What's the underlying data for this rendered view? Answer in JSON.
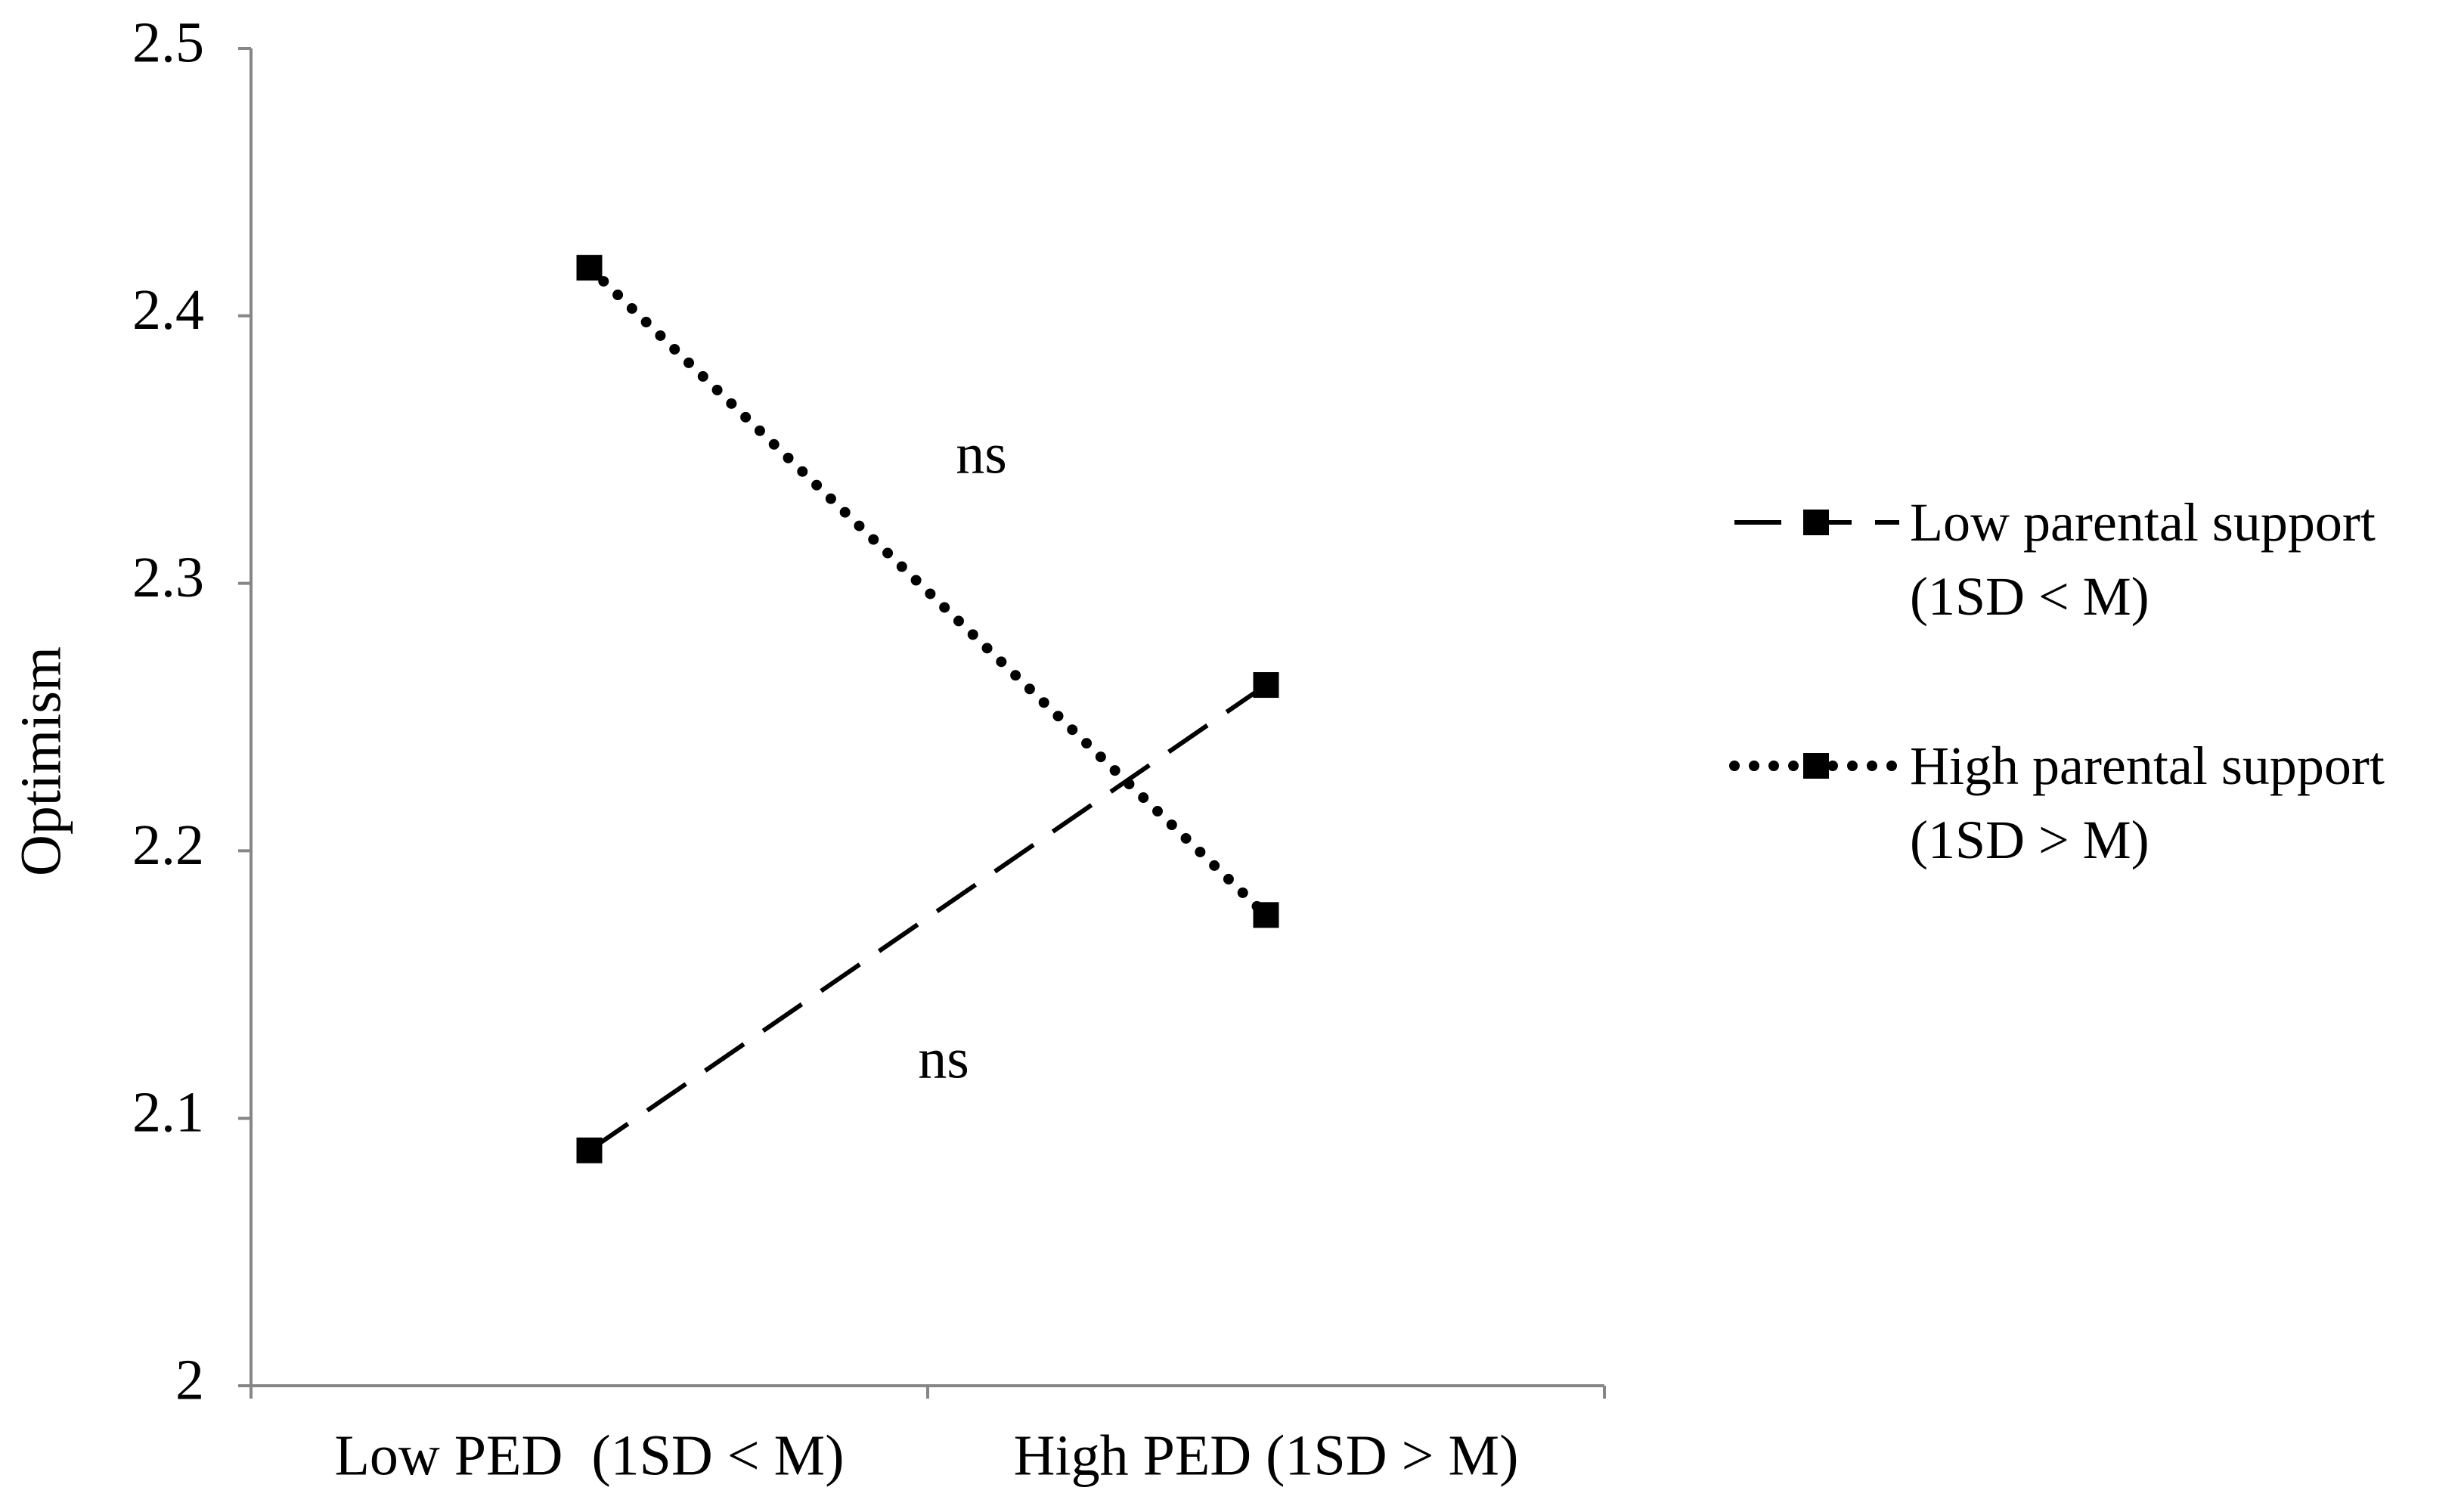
{
  "chart_data": {
    "type": "line",
    "ylabel": "Optimism",
    "categories": [
      "Low PED  (1SD < M)",
      "High PED (1SD > M)"
    ],
    "series": [
      {
        "name": "Low parental support (1SD < M)",
        "color": "#000000",
        "style": "dashed",
        "values": [
          2.088,
          2.262
        ]
      },
      {
        "name": "High parental support (1SD > M)",
        "color": "#000000",
        "style": "dotted",
        "values": [
          2.418,
          2.176
        ]
      }
    ],
    "annotations": [
      "ns",
      "ns"
    ],
    "ylim": [
      2,
      2.5
    ],
    "yticks": [
      2,
      2.1,
      2.2,
      2.3,
      2.4,
      2.5
    ],
    "legend": "right"
  }
}
